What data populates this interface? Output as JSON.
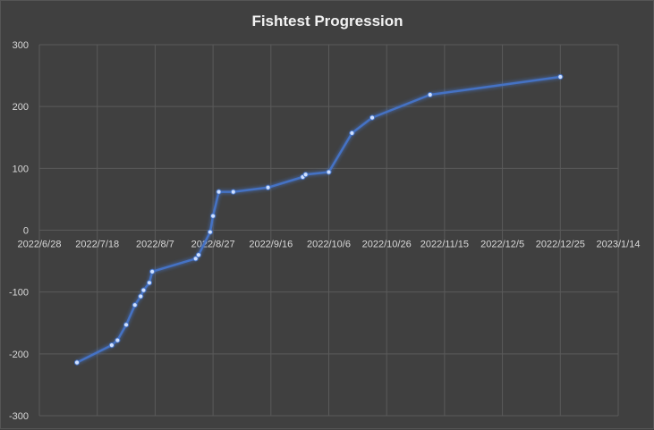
{
  "chart_data": {
    "type": "line",
    "title": "Fishtest Progression",
    "xlabel": "",
    "ylabel": "",
    "x_axis_type": "date",
    "xlim": [
      "2022-06-28",
      "2023-01-14"
    ],
    "x_ticks": [
      "2022-06-28",
      "2022-07-18",
      "2022-08-07",
      "2022-08-27",
      "2022-09-16",
      "2022-10-06",
      "2022-10-26",
      "2022-11-15",
      "2022-12-05",
      "2022-12-25",
      "2023-01-14"
    ],
    "x_tick_labels": [
      "2022/6/28",
      "2022/7/18",
      "2022/8/7",
      "2022/8/27",
      "2022/9/16",
      "2022/10/6",
      "2022/10/26",
      "2022/11/15",
      "2022/12/5",
      "2022/12/25",
      "2023/1/14"
    ],
    "ylim": [
      -300,
      300
    ],
    "y_ticks": [
      -300,
      -200,
      -100,
      0,
      100,
      200,
      300
    ],
    "y_tick_labels": [
      "-300",
      "-200",
      "-100",
      "0",
      "100",
      "200",
      "300"
    ],
    "grid": true,
    "legend": "none",
    "series": [
      {
        "color": "#4472c4",
        "points": [
          {
            "x": "2022-07-11",
            "y": -214
          },
          {
            "x": "2022-07-23",
            "y": -186
          },
          {
            "x": "2022-07-25",
            "y": -178
          },
          {
            "x": "2022-07-28",
            "y": -153
          },
          {
            "x": "2022-07-31",
            "y": -121
          },
          {
            "x": "2022-08-02",
            "y": -107
          },
          {
            "x": "2022-08-03",
            "y": -97
          },
          {
            "x": "2022-08-05",
            "y": -85
          },
          {
            "x": "2022-08-06",
            "y": -67
          },
          {
            "x": "2022-08-21",
            "y": -46
          },
          {
            "x": "2022-08-22",
            "y": -40
          },
          {
            "x": "2022-08-26",
            "y": -3
          },
          {
            "x": "2022-08-27",
            "y": 23
          },
          {
            "x": "2022-08-29",
            "y": 62
          },
          {
            "x": "2022-09-03",
            "y": 62
          },
          {
            "x": "2022-09-15",
            "y": 69
          },
          {
            "x": "2022-09-27",
            "y": 86
          },
          {
            "x": "2022-09-28",
            "y": 90
          },
          {
            "x": "2022-10-06",
            "y": 94
          },
          {
            "x": "2022-10-14",
            "y": 157
          },
          {
            "x": "2022-10-21",
            "y": 182
          },
          {
            "x": "2022-11-10",
            "y": 219
          },
          {
            "x": "2022-12-25",
            "y": 248
          }
        ]
      }
    ]
  }
}
